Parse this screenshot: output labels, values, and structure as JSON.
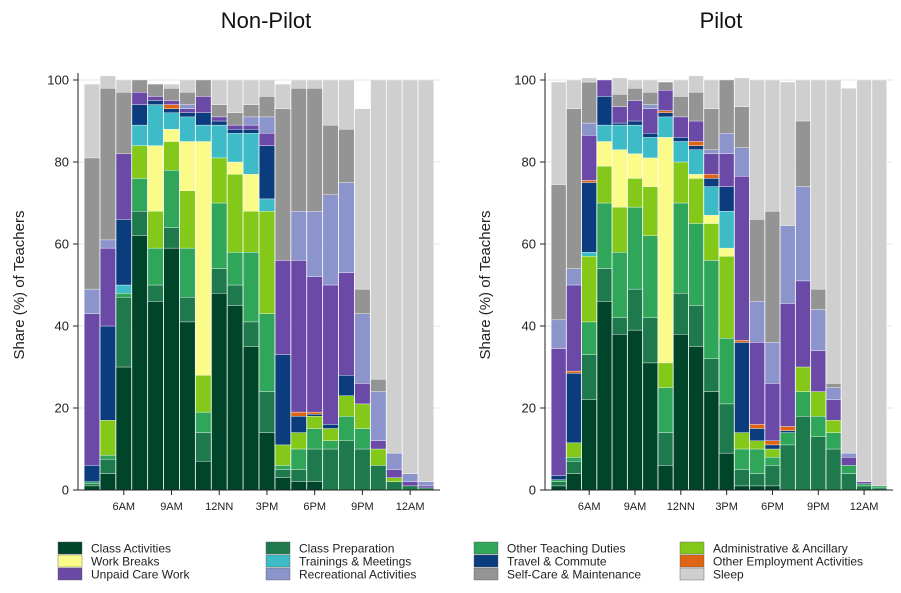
{
  "colors": {
    "Class Activities": "#00452a",
    "Class Preparation": "#1e7a4c",
    "Other Teaching Duties": "#2fa65a",
    "Administrative & Ancillary": "#84c919",
    "Work Breaks": "#fbfb8a",
    "Trainings & Meetings": "#3dbcc8",
    "Travel & Commute": "#0b3d7e",
    "Other Employment Activities": "#de6514",
    "Unpaid Care Work": "#6a4aa6",
    "Recreational Activities": "#8c94cc",
    "Self-Care & Maintenance": "#949494",
    "Sleep": "#cfcfcf"
  },
  "legend": [
    "Class Activities",
    "Class Preparation",
    "Other Teaching Duties",
    "Administrative & Ancillary",
    "Work Breaks",
    "Trainings & Meetings",
    "Travel & Commute",
    "Other Employment Activities",
    "Unpaid Care Work",
    "Recreational Activities",
    "Self-Care & Maintenance",
    "Sleep"
  ],
  "chart_data": [
    {
      "type": "bar",
      "stacked": true,
      "title": "Non-Pilot",
      "ylabel": "Share (%) of Teachers",
      "ylim": [
        0,
        100
      ],
      "yticks": [
        0,
        20,
        40,
        60,
        80,
        100
      ],
      "grid": true,
      "categories": [
        "4AM",
        "5AM",
        "6AM",
        "7AM",
        "8AM",
        "9AM",
        "10AM",
        "11AM",
        "12NN",
        "1PM",
        "2PM",
        "3PM",
        "4PM",
        "5PM",
        "6PM",
        "7PM",
        "8PM",
        "9PM",
        "10PM",
        "11PM",
        "12AM",
        "1AM"
      ],
      "xtick_labels": {
        "6AM": "6AM",
        "9AM": "9AM",
        "12NN": "12NN",
        "3PM": "3PM",
        "6PM": "6PM",
        "9PM": "9PM",
        "12AM": "12AM"
      },
      "series": [
        {
          "name": "Class Activities",
          "values": [
            1,
            4,
            30,
            62,
            46,
            59,
            41,
            7,
            48,
            45,
            35,
            14,
            3,
            2,
            2,
            0,
            0,
            0,
            0,
            0,
            0,
            0
          ]
        },
        {
          "name": "Class Preparation",
          "values": [
            0.5,
            3.5,
            17,
            6,
            4,
            5,
            6,
            7,
            6,
            5,
            6,
            10,
            2,
            3,
            8,
            10,
            12,
            10,
            6,
            2,
            1,
            0.5
          ]
        },
        {
          "name": "Other Teaching Duties",
          "values": [
            0.5,
            1,
            1,
            8,
            9,
            14,
            12,
            5,
            16,
            8,
            17,
            19,
            1,
            5,
            5,
            2,
            6,
            5,
            0,
            0,
            0,
            0
          ]
        },
        {
          "name": "Administrative & Ancillary",
          "values": [
            0,
            8.5,
            0,
            8,
            9,
            7,
            14,
            9,
            11,
            19,
            10,
            25,
            5,
            4,
            3,
            3,
            5,
            6,
            4,
            1,
            0,
            0
          ]
        },
        {
          "name": "Work Breaks",
          "values": [
            0,
            0,
            0,
            0,
            16,
            3,
            12,
            57,
            0,
            3,
            9,
            0,
            0,
            0,
            0,
            0,
            0,
            0,
            0,
            0,
            0,
            0
          ]
        },
        {
          "name": "Trainings & Meetings",
          "values": [
            0,
            0,
            2,
            5,
            10,
            4,
            6,
            4,
            8,
            7,
            10,
            3,
            0,
            0,
            0,
            0,
            0,
            0,
            0,
            0,
            0,
            0
          ]
        },
        {
          "name": "Travel & Commute",
          "values": [
            4,
            23,
            16,
            5,
            1,
            1,
            1,
            3,
            1,
            1,
            1,
            13,
            22,
            4,
            0.5,
            1,
            5,
            0,
            0,
            0,
            0,
            0
          ]
        },
        {
          "name": "Other Employment Activities",
          "values": [
            0,
            0,
            0,
            0,
            0,
            1,
            0,
            0,
            0,
            0,
            0,
            0,
            0,
            1,
            0.5,
            0,
            0,
            0,
            0,
            0,
            0,
            0
          ]
        },
        {
          "name": "Unpaid Care Work",
          "values": [
            37,
            19,
            16,
            3,
            1,
            1,
            1,
            4,
            1,
            1,
            1,
            3,
            23,
            37,
            33,
            34,
            25,
            5,
            2,
            2,
            1,
            0.5
          ]
        },
        {
          "name": "Recreational Activities",
          "values": [
            6,
            2,
            0,
            0,
            0,
            0,
            1,
            0,
            0,
            0,
            2,
            4,
            0,
            12,
            16,
            22,
            22,
            17,
            12,
            4,
            2,
            1
          ]
        },
        {
          "name": "Self-Care & Maintenance",
          "values": [
            32,
            37,
            15,
            3,
            3,
            3,
            3,
            4,
            3,
            3,
            3,
            5,
            37,
            30,
            30,
            17,
            13,
            6,
            3,
            0,
            0,
            0
          ]
        },
        {
          "name": "Sleep",
          "values": [
            18,
            3,
            3,
            0,
            0,
            1,
            3,
            0,
            6,
            8,
            6,
            4,
            6,
            2,
            2,
            11,
            12,
            44,
            73,
            91,
            96,
            98
          ]
        }
      ]
    },
    {
      "type": "bar",
      "stacked": true,
      "title": "Pilot",
      "ylabel": "Share (%) of Teachers",
      "ylim": [
        0,
        100
      ],
      "yticks": [
        0,
        20,
        40,
        60,
        80,
        100
      ],
      "grid": true,
      "categories": [
        "4AM",
        "5AM",
        "6AM",
        "7AM",
        "8AM",
        "9AM",
        "10AM",
        "11AM",
        "12NN",
        "1PM",
        "2PM",
        "3PM",
        "4PM",
        "5PM",
        "6PM",
        "7PM",
        "8PM",
        "9PM",
        "10PM",
        "11PM",
        "12AM",
        "1AM"
      ],
      "xtick_labels": {
        "6AM": "6AM",
        "9AM": "9AM",
        "12NN": "12NN",
        "3PM": "3PM",
        "6PM": "6PM",
        "9PM": "9PM",
        "12AM": "12AM"
      },
      "series": [
        {
          "name": "Class Activities",
          "values": [
            1,
            4,
            22,
            46,
            38,
            39,
            31,
            6,
            38,
            35,
            24,
            9,
            1,
            1,
            1,
            0,
            0,
            0,
            0,
            0,
            0,
            0
          ]
        },
        {
          "name": "Class Preparation",
          "values": [
            1,
            3,
            11,
            8,
            4,
            10,
            11,
            8,
            10,
            10,
            8,
            12,
            4,
            3,
            5,
            11,
            18,
            13,
            10,
            4,
            1,
            0.5
          ]
        },
        {
          "name": "Other Teaching Duties",
          "values": [
            0.5,
            1,
            8,
            16,
            16,
            20,
            20,
            11,
            22,
            20,
            24,
            16,
            5,
            6,
            2,
            3,
            6,
            5,
            4,
            2,
            0.5,
            0.5
          ]
        },
        {
          "name": "Administrative & Ancillary",
          "values": [
            0,
            3.5,
            16,
            9,
            11,
            7,
            12,
            6,
            10,
            11,
            9,
            20,
            4,
            2,
            2,
            0,
            6,
            6,
            3,
            0,
            0,
            0
          ]
        },
        {
          "name": "Work Breaks",
          "values": [
            0,
            0,
            0,
            6,
            14,
            6,
            7,
            55,
            0,
            1,
            2,
            2,
            0,
            0,
            0,
            0,
            0,
            0,
            0,
            0,
            0,
            0
          ]
        },
        {
          "name": "Trainings & Meetings",
          "values": [
            0,
            0,
            1,
            4,
            6,
            7,
            5,
            5,
            5,
            6,
            7,
            9,
            0,
            0,
            0,
            0,
            0,
            0,
            0,
            0,
            0,
            0
          ]
        },
        {
          "name": "Travel & Commute",
          "values": [
            1,
            17,
            17,
            7,
            0.5,
            1,
            1,
            1,
            1,
            1,
            2,
            6,
            22,
            3,
            1,
            0.5,
            0,
            0,
            0,
            0,
            0,
            0
          ]
        },
        {
          "name": "Other Employment Activities",
          "values": [
            0,
            0.5,
            0.5,
            0,
            0,
            0,
            0,
            0.5,
            0,
            1,
            1,
            0,
            0.5,
            1,
            1,
            1,
            0,
            0,
            0,
            0,
            0,
            0
          ]
        },
        {
          "name": "Unpaid Care Work",
          "values": [
            31,
            21,
            11,
            4,
            4,
            5,
            6,
            5,
            5,
            5,
            5,
            8,
            40,
            20,
            14,
            30,
            21,
            10,
            5,
            2,
            0.5,
            0
          ]
        },
        {
          "name": "Recreational Activities",
          "values": [
            7,
            4,
            3,
            0,
            0,
            0,
            1,
            0,
            0,
            0,
            1,
            5,
            7,
            10,
            10,
            19,
            23,
            10,
            3,
            1,
            0,
            0
          ]
        },
        {
          "name": "Self-Care & Maintenance",
          "values": [
            33,
            39,
            10,
            0,
            3,
            3,
            3,
            2,
            5,
            7,
            10,
            13,
            10,
            20,
            32,
            0,
            16,
            5,
            1,
            0,
            0,
            0
          ]
        },
        {
          "name": "Sleep",
          "values": [
            25,
            7,
            1,
            0,
            4,
            2,
            3,
            0,
            4,
            4,
            7,
            0,
            7,
            34,
            32,
            35,
            10,
            51,
            74,
            89,
            98,
            99
          ]
        }
      ]
    }
  ]
}
